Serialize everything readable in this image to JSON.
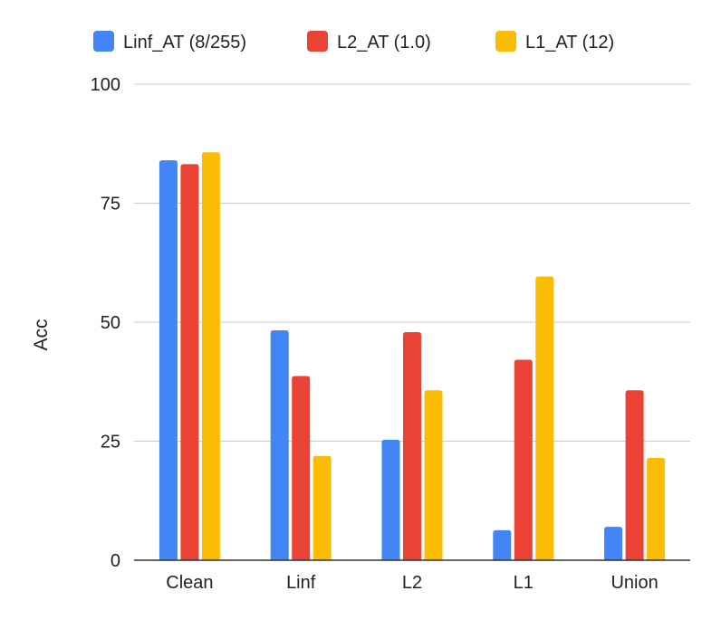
{
  "chart_data": {
    "type": "bar",
    "title": "",
    "xlabel": "",
    "ylabel": "Acc",
    "ylim": [
      0,
      100
    ],
    "yticks": [
      0,
      25,
      50,
      75,
      100
    ],
    "grid": true,
    "legend_position": "top",
    "categories": [
      "Clean",
      "Linf",
      "L2",
      "L1",
      "Union"
    ],
    "series": [
      {
        "name": "Linf_AT (8/255)",
        "color": "#4285f4",
        "values": [
          84,
          48.3,
          25.3,
          6.3,
          7
        ]
      },
      {
        "name": "L2_AT (1.0)",
        "color": "#ea4335",
        "values": [
          83.2,
          38.7,
          47.9,
          42.1,
          35.7
        ]
      },
      {
        "name": "L1_AT (12)",
        "color": "#fbbc04",
        "values": [
          85.7,
          21.9,
          35.7,
          59.6,
          21.5
        ]
      }
    ]
  }
}
